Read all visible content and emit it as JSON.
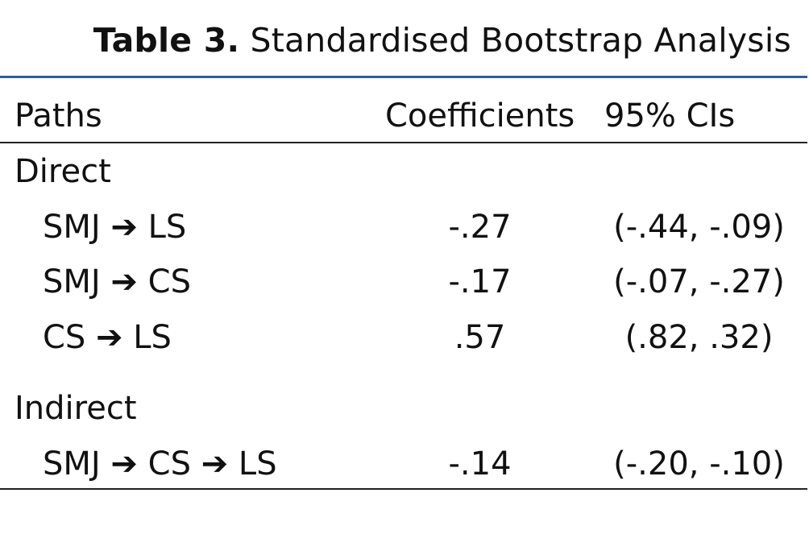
{
  "caption": {
    "label": "Table 3.",
    "title": "Standardised Bootstrap Analysis"
  },
  "columns": {
    "paths": "Paths",
    "coefficients": "Coefficients",
    "ci": "95% CIs"
  },
  "sections": [
    {
      "heading": "Direct",
      "rows": [
        {
          "path": "SMJ ➔ LS",
          "coefficient": "-.27",
          "ci": "(-.44, -.09)"
        },
        {
          "path": "SMJ ➔ CS",
          "coefficient": "-.17",
          "ci": "(-.07, -.27)"
        },
        {
          "path": "CS ➔ LS",
          "coefficient": ".57",
          "ci": "(.82, .32)"
        }
      ]
    },
    {
      "heading": "Indirect",
      "rows": [
        {
          "path": "SMJ ➔ CS ➔ LS",
          "coefficient": "-.14",
          "ci": "(-.20, -.10)"
        }
      ]
    }
  ],
  "colors": {
    "top_rule": "#2f5e9e",
    "text": "#111111"
  }
}
